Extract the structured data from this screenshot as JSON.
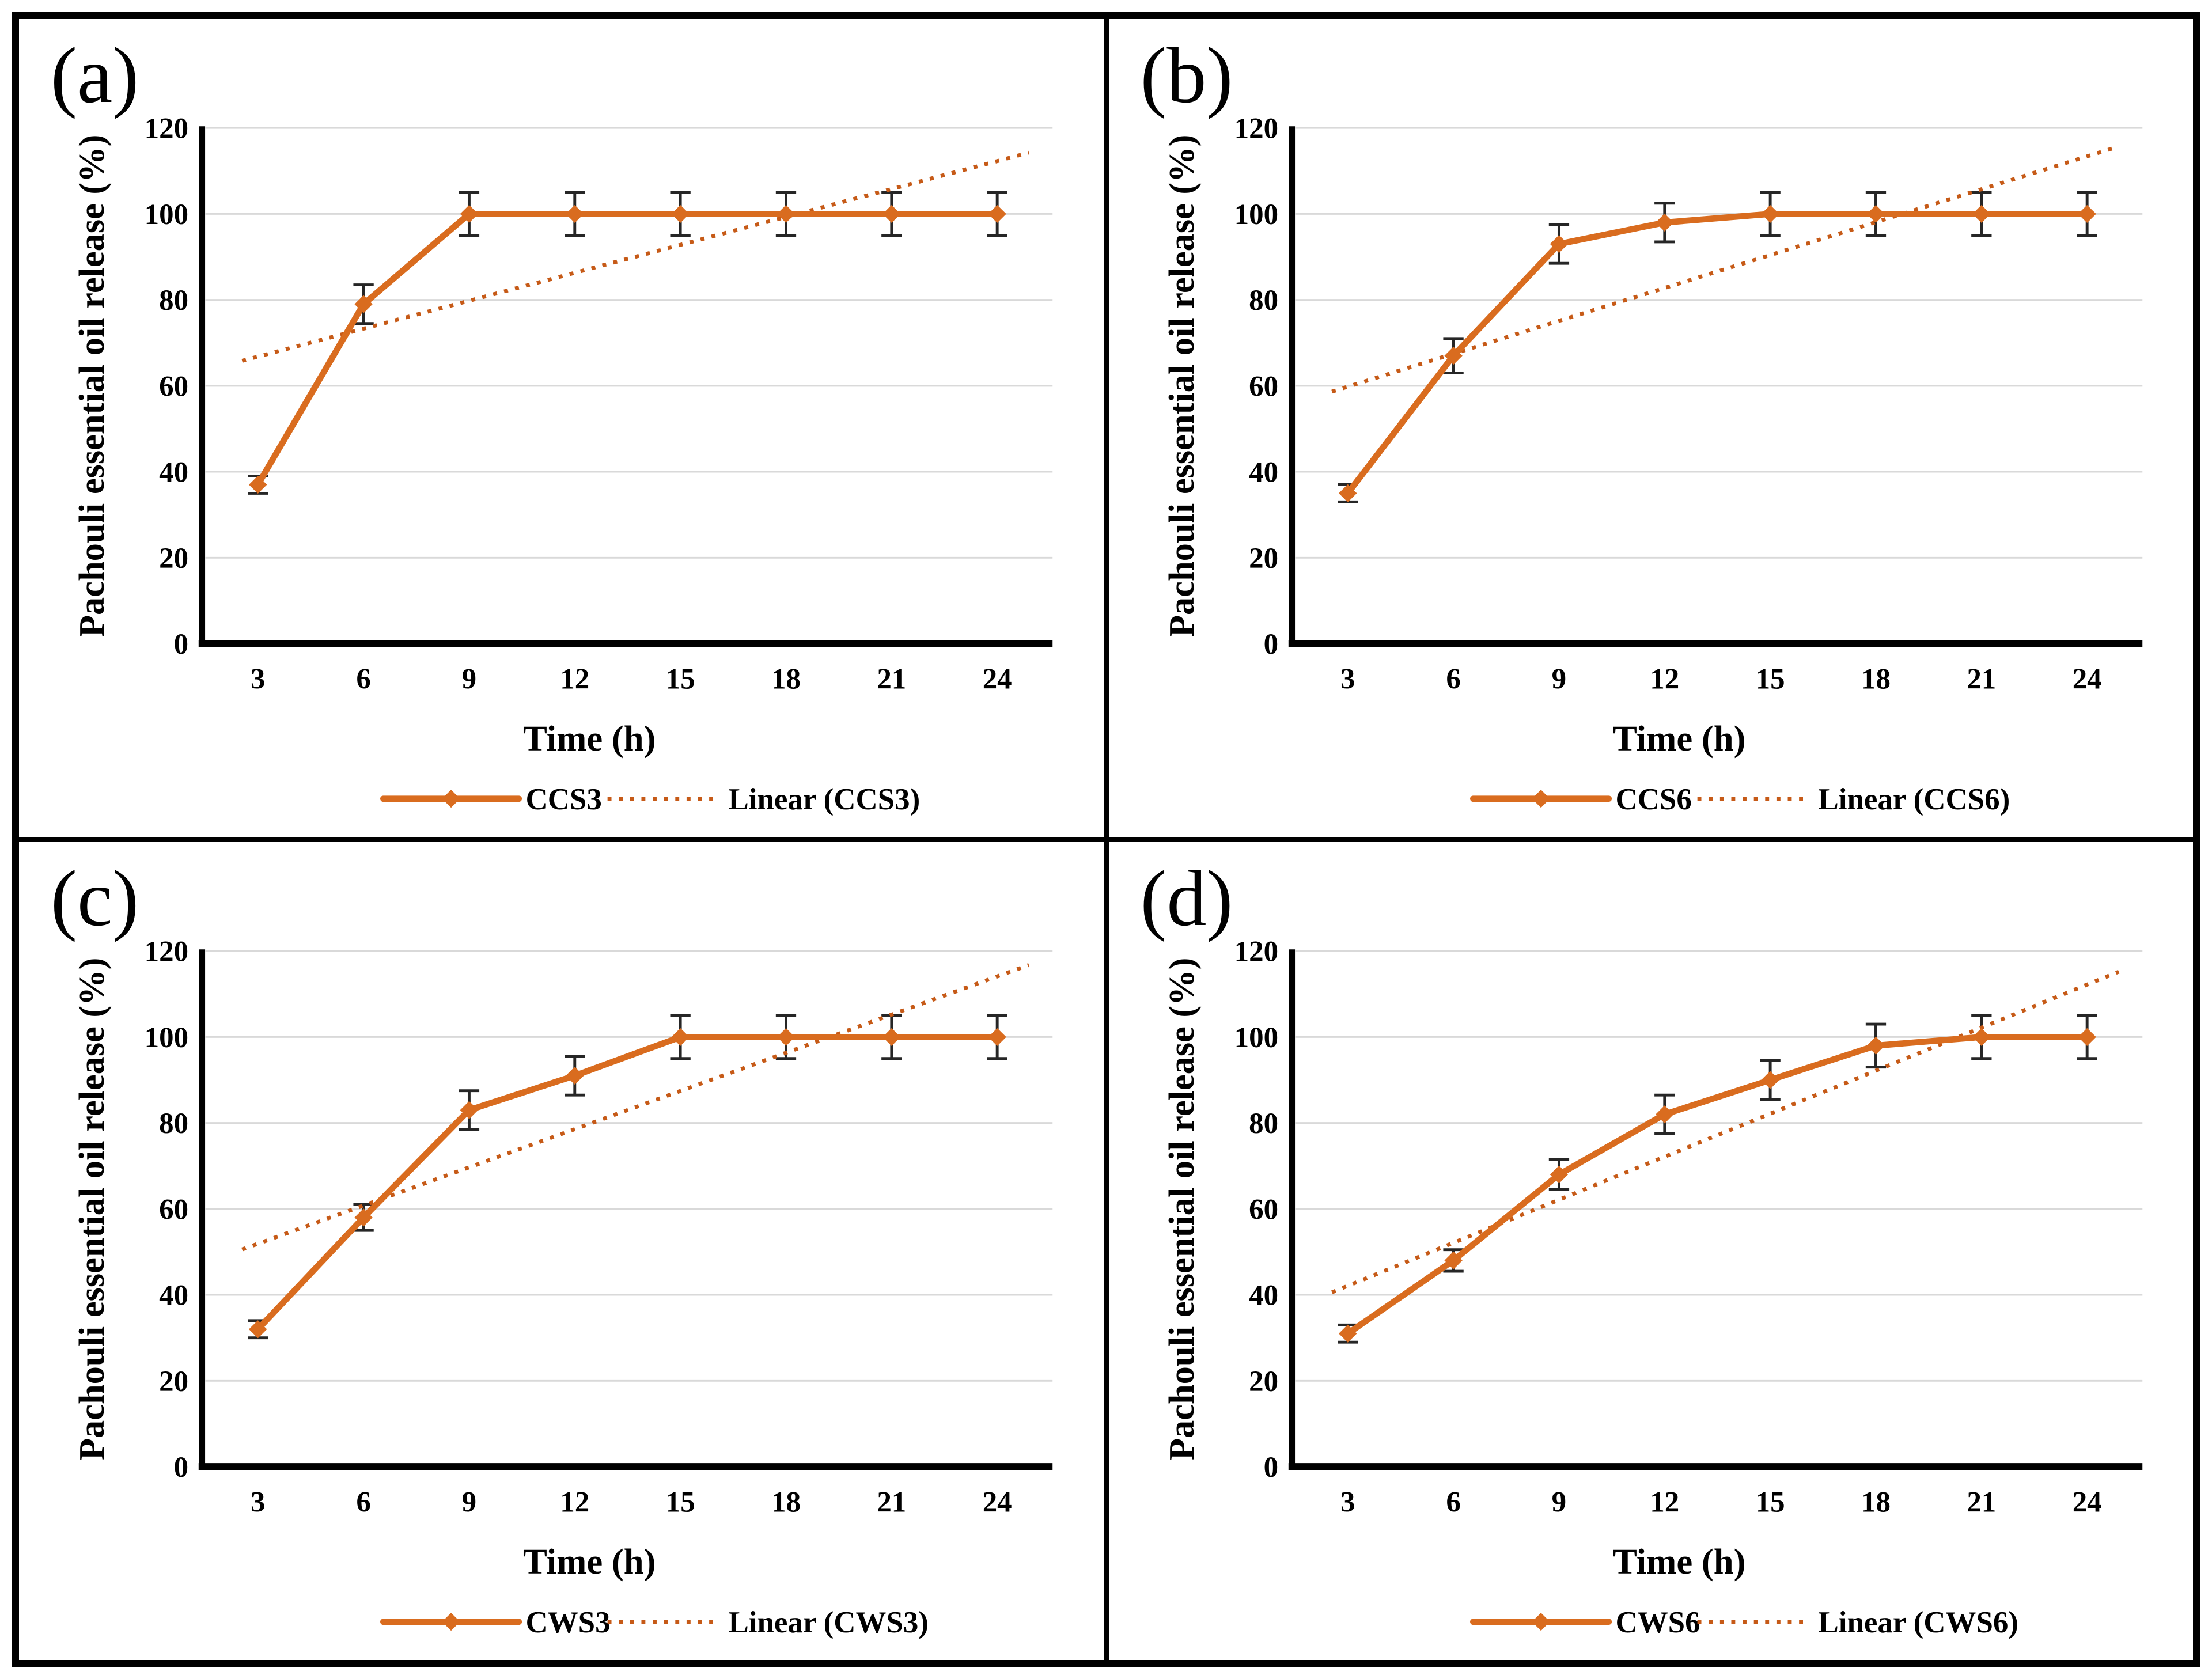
{
  "figure": {
    "colors": {
      "series": "#D96C1F",
      "trend_dots": "#C65A17",
      "error_bar": "#262626",
      "gridline": "#D9D9D9",
      "axis": "#000000",
      "text": "#000000",
      "frame": "#000000",
      "background": "#FFFFFF"
    }
  },
  "chart_data": [
    {
      "type": "line",
      "panel": "(a)",
      "xlabel": "Time (h)",
      "ylabel": "Pachouli essential oil release (%)",
      "x": [
        3,
        6,
        9,
        12,
        15,
        18,
        21,
        24
      ],
      "x_tick_labels": [
        "3",
        "6",
        "9",
        "12",
        "15",
        "18",
        "21",
        "24"
      ],
      "y_ticks": [
        0,
        20,
        40,
        60,
        80,
        100,
        120
      ],
      "ylim": [
        0,
        120
      ],
      "grid": "horizontal",
      "legend_position": "bottom",
      "series": [
        {
          "name": "CCS3",
          "values": [
            37,
            79,
            100,
            100,
            100,
            100,
            100,
            100
          ],
          "errors": [
            2,
            4.5,
            5,
            5,
            5,
            5,
            5,
            5
          ]
        }
      ],
      "trendline": {
        "name": "Linear (CCS3)",
        "start": 66.8,
        "end": 112.3
      }
    },
    {
      "type": "line",
      "panel": "(b)",
      "xlabel": "Time (h)",
      "ylabel": "Pachouli essential oil release (%)",
      "x": [
        3,
        6,
        9,
        12,
        15,
        18,
        21,
        24
      ],
      "x_tick_labels": [
        "3",
        "6",
        "9",
        "12",
        "15",
        "18",
        "21",
        "24"
      ],
      "y_ticks": [
        0,
        20,
        40,
        60,
        80,
        100,
        120
      ],
      "ylim": [
        0,
        120
      ],
      "grid": "horizontal",
      "legend_position": "bottom",
      "series": [
        {
          "name": "CCS6",
          "values": [
            35,
            67,
            93,
            98,
            100,
            100,
            100,
            100
          ],
          "errors": [
            2,
            4,
            4.5,
            4.5,
            5,
            5,
            5,
            5
          ]
        }
      ],
      "trendline": {
        "name": "Linear (CCS6)",
        "start": 59.8,
        "end": 113.4
      }
    },
    {
      "type": "line",
      "panel": "(c)",
      "xlabel": "Time (h)",
      "ylabel": "Pachouli essential oil release (%)",
      "x": [
        3,
        6,
        9,
        12,
        15,
        18,
        21,
        24
      ],
      "x_tick_labels": [
        "3",
        "6",
        "9",
        "12",
        "15",
        "18",
        "21",
        "24"
      ],
      "y_ticks": [
        0,
        20,
        40,
        60,
        80,
        100,
        120
      ],
      "ylim": [
        0,
        120
      ],
      "grid": "horizontal",
      "legend_position": "bottom",
      "series": [
        {
          "name": "CWS3",
          "values": [
            32,
            58,
            83,
            91,
            100,
            100,
            100,
            100
          ],
          "errors": [
            2,
            3,
            4.5,
            4.5,
            5,
            5,
            5,
            5
          ]
        }
      ],
      "trendline": {
        "name": "Linear (CWS3)",
        "start": 51.9,
        "end": 114.1
      }
    },
    {
      "type": "line",
      "panel": "(d)",
      "xlabel": "Time (h)",
      "ylabel": "Pachouli essential oil release (%)",
      "x": [
        3,
        6,
        9,
        12,
        15,
        18,
        21,
        24
      ],
      "x_tick_labels": [
        "3",
        "6",
        "9",
        "12",
        "15",
        "18",
        "21",
        "24"
      ],
      "y_ticks": [
        0,
        20,
        40,
        60,
        80,
        100,
        120
      ],
      "ylim": [
        0,
        120
      ],
      "grid": "horizontal",
      "legend_position": "bottom",
      "series": [
        {
          "name": "CWS6",
          "values": [
            31,
            48,
            68,
            82,
            90,
            98,
            100,
            100
          ],
          "errors": [
            2,
            2.5,
            3.5,
            4.5,
            4.5,
            5,
            5,
            5
          ]
        }
      ],
      "trendline": {
        "name": "Linear (CWS6)",
        "start": 42.1,
        "end": 112.2
      }
    }
  ]
}
